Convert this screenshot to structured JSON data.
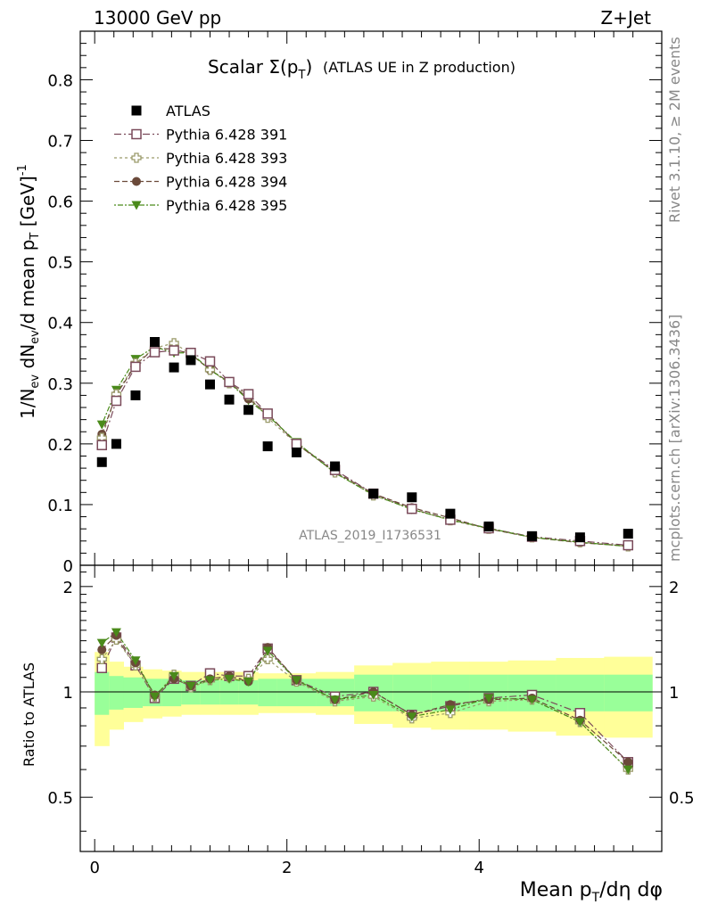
{
  "header": {
    "left": "13000 GeV pp",
    "right": "Z+Jet"
  },
  "side": {
    "top": "Rivet 3.1.10, ≥ 2M events",
    "bottom": "mcplots.cern.ch [arXiv:1306.3436]"
  },
  "watermark": "ATLAS_2019_I1736531",
  "colors": {
    "atlas": "#000000",
    "p391": "#7a4a5a",
    "p393": "#9a9a6a",
    "p394": "#6b4a3a",
    "p395": "#4a8a1a",
    "band_inner": "#99ff99",
    "band_outer": "#ffff99"
  },
  "chart_data": [
    {
      "type": "scatter",
      "title_main": "Scalar Σ(p",
      "title_sub": "T",
      "title_close": ")",
      "title_rest": "(ATLAS UE in Z production)",
      "ylabel": "1/N_ev dN_ev/d mean p_T [GeV]^-1",
      "ylim": [
        0,
        0.88
      ],
      "yticks": [
        0,
        0.1,
        0.2,
        0.3,
        0.4,
        0.5,
        0.6,
        0.7,
        0.8
      ],
      "ytick_labels": [
        "0",
        "0.1",
        "0.2",
        "0.3",
        "0.4",
        "0.5",
        "0.6",
        "0.7",
        "0.8"
      ],
      "x": [
        0.075,
        0.225,
        0.425,
        0.625,
        0.825,
        1.0,
        1.2,
        1.4,
        1.6,
        1.8,
        2.1,
        2.5,
        2.9,
        3.3,
        3.7,
        4.1,
        4.55,
        5.05,
        5.55
      ],
      "legend": {
        "atlas": "ATLAS",
        "p391": "Pythia 6.428 391",
        "p393": "Pythia 6.428 393",
        "p394": "Pythia 6.428 394",
        "p395": "Pythia 6.428 395"
      },
      "series": [
        {
          "name": "ATLAS",
          "key": "atlas",
          "values": [
            0.17,
            0.2,
            0.28,
            0.368,
            0.326,
            0.338,
            0.298,
            0.273,
            0.256,
            0.196,
            0.186,
            0.163,
            0.118,
            0.112,
            0.085,
            0.064,
            0.048,
            0.046,
            0.052
          ]
        },
        {
          "name": "Pythia 6.428 391",
          "key": "p391",
          "values": [
            0.198,
            0.271,
            0.327,
            0.351,
            0.354,
            0.35,
            0.336,
            0.302,
            0.282,
            0.25,
            0.2,
            0.157,
            0.118,
            0.093,
            0.075,
            0.061,
            0.047,
            0.04,
            0.033
          ]
        },
        {
          "name": "Pythia 6.428 393",
          "key": "p393",
          "values": [
            0.21,
            0.282,
            0.333,
            0.358,
            0.366,
            0.348,
            0.322,
            0.3,
            0.28,
            0.243,
            0.2,
            0.153,
            0.115,
            0.093,
            0.074,
            0.06,
            0.046,
            0.038,
            0.031
          ]
        },
        {
          "name": "Pythia 6.428 394",
          "key": "p394",
          "values": [
            0.216,
            0.281,
            0.33,
            0.358,
            0.356,
            0.348,
            0.322,
            0.302,
            0.274,
            0.25,
            0.2,
            0.154,
            0.118,
            0.095,
            0.078,
            0.06,
            0.046,
            0.037,
            0.032
          ]
        },
        {
          "name": "Pythia 6.428 395",
          "key": "p395",
          "values": [
            0.232,
            0.289,
            0.34,
            0.36,
            0.35,
            0.35,
            0.322,
            0.301,
            0.272,
            0.247,
            0.203,
            0.152,
            0.116,
            0.092,
            0.075,
            0.061,
            0.046,
            0.038,
            0.031
          ]
        }
      ]
    },
    {
      "type": "line",
      "ylabel": "Ratio to ATLAS",
      "xlabel": "Mean p_T/dη dφ",
      "xlim": [
        -0.15,
        5.9
      ],
      "ylim": [
        0.35,
        2.3
      ],
      "xticks": [
        0,
        2,
        4
      ],
      "xtick_labels": [
        "0",
        "2",
        "4"
      ],
      "yticks_major": [
        0.5,
        1,
        2
      ],
      "ytick_labels": [
        "0.5",
        "1",
        "2"
      ],
      "band_edges": [
        0.0,
        0.15,
        0.3,
        0.5,
        0.7,
        0.9,
        1.1,
        1.3,
        1.5,
        1.7,
        1.9,
        2.3,
        2.7,
        3.1,
        3.5,
        3.9,
        4.3,
        4.8,
        5.3,
        5.8
      ],
      "band_inner_lo": [
        0.86,
        0.89,
        0.9,
        0.91,
        0.91,
        0.92,
        0.92,
        0.92,
        0.92,
        0.91,
        0.91,
        0.91,
        0.88,
        0.88,
        0.88,
        0.88,
        0.88,
        0.88,
        0.88
      ],
      "band_inner_hi": [
        1.14,
        1.11,
        1.1,
        1.09,
        1.09,
        1.08,
        1.08,
        1.08,
        1.08,
        1.09,
        1.09,
        1.09,
        1.12,
        1.12,
        1.12,
        1.12,
        1.12,
        1.12,
        1.12
      ],
      "band_outer_lo": [
        0.7,
        0.78,
        0.82,
        0.84,
        0.85,
        0.86,
        0.86,
        0.86,
        0.86,
        0.87,
        0.87,
        0.86,
        0.81,
        0.79,
        0.78,
        0.78,
        0.77,
        0.75,
        0.74
      ],
      "band_outer_hi": [
        1.3,
        1.22,
        1.18,
        1.16,
        1.15,
        1.14,
        1.14,
        1.14,
        1.14,
        1.13,
        1.13,
        1.14,
        1.19,
        1.21,
        1.22,
        1.22,
        1.23,
        1.25,
        1.26
      ],
      "series": [
        {
          "name": "Pythia 6.428 391",
          "key": "p391",
          "values": [
            1.17,
            1.43,
            1.19,
            0.96,
            1.09,
            1.04,
            1.13,
            1.11,
            1.11,
            1.33,
            1.08,
            0.97,
            1.0,
            0.86,
            0.91,
            0.96,
            0.98,
            0.87,
            0.63
          ]
        },
        {
          "name": "Pythia 6.428 393",
          "key": "p393",
          "values": [
            1.24,
            1.41,
            1.19,
            0.97,
            1.12,
            1.03,
            1.08,
            1.1,
            1.09,
            1.24,
            1.07,
            0.94,
            0.97,
            0.84,
            0.87,
            0.94,
            0.95,
            0.82,
            0.6
          ]
        },
        {
          "name": "Pythia 6.428 394",
          "key": "p394",
          "values": [
            1.32,
            1.45,
            1.21,
            0.98,
            1.09,
            1.04,
            1.09,
            1.11,
            1.07,
            1.34,
            1.08,
            0.95,
            1.0,
            0.86,
            0.92,
            0.95,
            0.96,
            0.83,
            0.63
          ]
        },
        {
          "name": "Pythia 6.428 395",
          "key": "p395",
          "values": [
            1.38,
            1.48,
            1.23,
            0.97,
            1.11,
            1.04,
            1.08,
            1.09,
            1.07,
            1.31,
            1.08,
            0.95,
            0.98,
            0.85,
            0.89,
            0.96,
            0.95,
            0.82,
            0.6
          ]
        }
      ]
    }
  ]
}
